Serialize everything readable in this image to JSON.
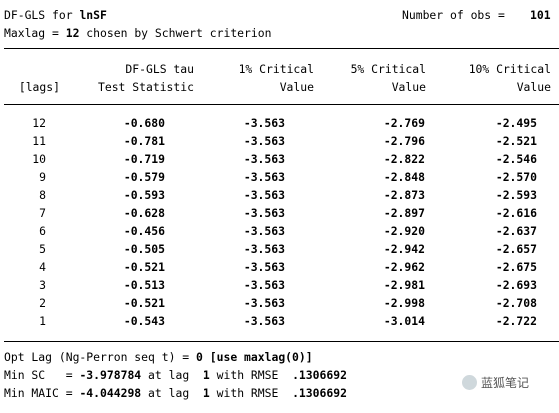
{
  "header": {
    "line1_prefix": "DF-GLS for ",
    "varname": "lnSF",
    "nobs_label": "Number of obs =",
    "nobs_value": "101",
    "line2_prefix": "Maxlag = ",
    "maxlag": "12",
    "line2_suffix": " chosen by Schwert criterion"
  },
  "columns": {
    "h1": [
      "",
      "[lags]"
    ],
    "h2": [
      "DF-GLS tau",
      "Test Statistic"
    ],
    "h3": [
      "1% Critical",
      "Value"
    ],
    "h4": [
      "5% Critical",
      "Value"
    ],
    "h5": [
      "10% Critical",
      "Value"
    ]
  },
  "rows": [
    [
      "12",
      "-0.680",
      "-3.563",
      "-2.769",
      "-2.495"
    ],
    [
      "11",
      "-0.781",
      "-3.563",
      "-2.796",
      "-2.521"
    ],
    [
      "10",
      "-0.719",
      "-3.563",
      "-2.822",
      "-2.546"
    ],
    [
      "9",
      "-0.579",
      "-3.563",
      "-2.848",
      "-2.570"
    ],
    [
      "8",
      "-0.593",
      "-3.563",
      "-2.873",
      "-2.593"
    ],
    [
      "7",
      "-0.628",
      "-3.563",
      "-2.897",
      "-2.616"
    ],
    [
      "6",
      "-0.456",
      "-3.563",
      "-2.920",
      "-2.637"
    ],
    [
      "5",
      "-0.505",
      "-3.563",
      "-2.942",
      "-2.657"
    ],
    [
      "4",
      "-0.521",
      "-3.563",
      "-2.962",
      "-2.675"
    ],
    [
      "3",
      "-0.513",
      "-3.563",
      "-2.981",
      "-2.693"
    ],
    [
      "2",
      "-0.521",
      "-3.563",
      "-2.998",
      "-2.708"
    ],
    [
      "1",
      "-0.543",
      "-3.563",
      "-3.014",
      "-2.722"
    ]
  ],
  "footer": {
    "opt_prefix": "Opt Lag (Ng-Perron seq t) = ",
    "opt_value": "0 [use maxlag(0)]",
    "sc_prefix": "Min SC   = ",
    "sc_value": "-3.978784",
    "sc_mid": " at lag  ",
    "sc_lag": "1",
    "sc_suffix": " with RMSE  ",
    "sc_rmse": ".1306692",
    "maic_prefix": "Min MAIC = ",
    "maic_value": "-4.044298",
    "maic_mid": " at lag  ",
    "maic_lag": "1",
    "maic_suffix": " with RMSE  ",
    "maic_rmse": ".1306692"
  },
  "watermark": {
    "text": "蓝狐笔记",
    "icon": "wechat-icon"
  }
}
